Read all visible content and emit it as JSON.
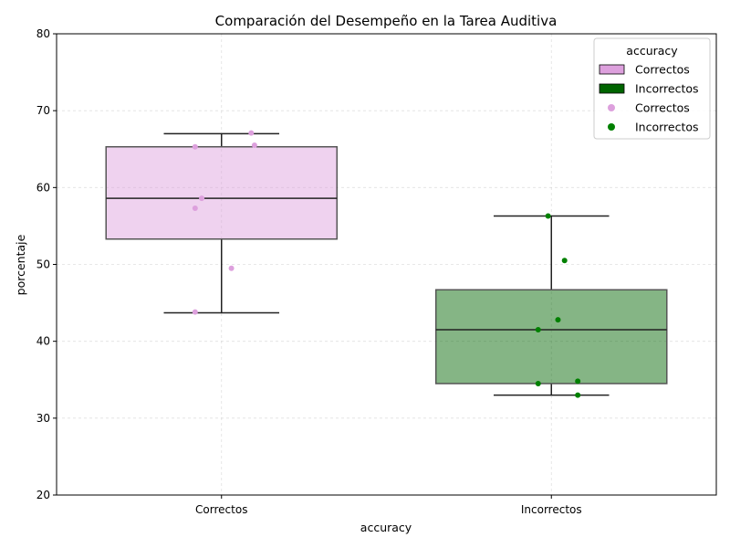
{
  "chart_data": {
    "type": "box",
    "title": "Comparación del Desempeño en la Tarea Auditiva",
    "xlabel": "accuracy",
    "ylabel": "porcentaje",
    "ylim": [
      20,
      80
    ],
    "yticks": [
      20,
      30,
      40,
      50,
      60,
      70,
      80
    ],
    "grid": true,
    "categories": [
      "Correctos",
      "Incorrectos"
    ],
    "boxes": [
      {
        "category": "Correctos",
        "whisker_low": 43.7,
        "q1": 53.3,
        "median": 58.6,
        "q3": 65.3,
        "whisker_high": 67.0,
        "color": "#DDA0DD"
      },
      {
        "category": "Incorrectos",
        "whisker_low": 33.0,
        "q1": 34.5,
        "median": 41.5,
        "q3": 46.7,
        "whisker_high": 56.3,
        "color": "#006400"
      }
    ],
    "points": [
      {
        "category": "Correctos",
        "values": [
          67.1,
          65.5,
          65.3,
          58.6,
          57.3,
          49.5,
          43.8
        ],
        "jitter": [
          0.09,
          0.1,
          -0.08,
          -0.06,
          -0.08,
          0.03,
          -0.08
        ],
        "color": "#DDA0DD"
      },
      {
        "category": "Incorrectos",
        "values": [
          56.3,
          50.5,
          42.8,
          41.5,
          34.8,
          34.5,
          33.0
        ],
        "jitter": [
          -0.01,
          0.04,
          0.02,
          -0.04,
          0.08,
          -0.04,
          0.08
        ],
        "color": "#008000"
      }
    ],
    "legend": {
      "title": "accuracy",
      "position": "top-right",
      "entries": [
        {
          "label": "Correctos",
          "kind": "patch",
          "color": "#DDA0DD"
        },
        {
          "label": "Incorrectos",
          "kind": "patch",
          "color": "#006400"
        },
        {
          "label": "Correctos",
          "kind": "marker",
          "color": "#DDA0DD"
        },
        {
          "label": "Incorrectos",
          "kind": "marker",
          "color": "#008000"
        }
      ]
    }
  }
}
